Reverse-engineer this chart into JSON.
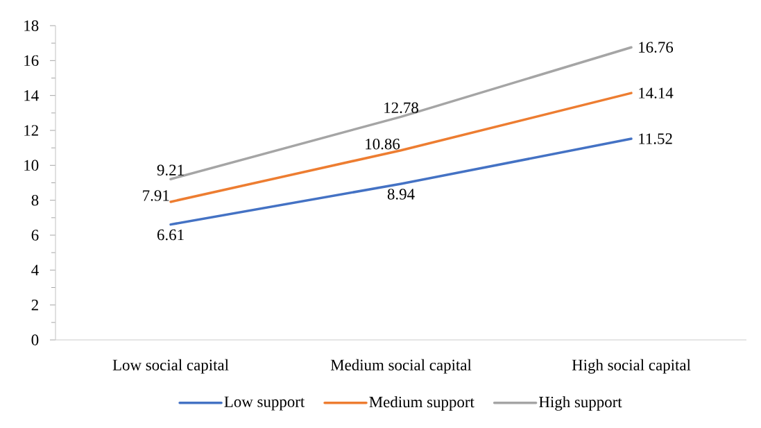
{
  "chart_data": {
    "type": "line",
    "categories": [
      "Low social capital",
      "Medium social capital",
      "High social capital"
    ],
    "series": [
      {
        "name": "Low support",
        "color": "#4472c4",
        "values": [
          6.61,
          8.94,
          11.52
        ]
      },
      {
        "name": "Medium support",
        "color": "#ed7d31",
        "values": [
          7.91,
          10.86,
          14.14
        ]
      },
      {
        "name": "High support",
        "color": "#a5a5a5",
        "values": [
          9.21,
          12.78,
          16.76
        ]
      }
    ],
    "ylim": [
      0,
      18
    ],
    "yticks": [
      0,
      2,
      4,
      6,
      8,
      10,
      12,
      14,
      16,
      18
    ],
    "data_labels": true,
    "legend": "bottom",
    "grid": false,
    "marker": "none",
    "line_style": "solid"
  }
}
